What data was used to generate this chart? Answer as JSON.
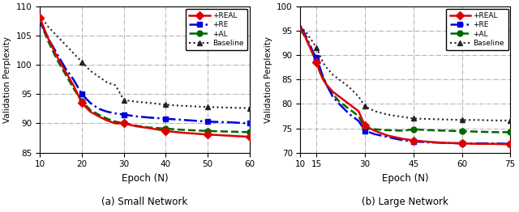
{
  "left_plot": {
    "title": "(a) Small Network",
    "xlabel": "Epoch (N)",
    "ylabel": "Validation Perplexity",
    "xlim": [
      10,
      60
    ],
    "ylim": [
      85,
      110
    ],
    "xticks": [
      10,
      20,
      30,
      40,
      50,
      60
    ],
    "yticks": [
      85,
      90,
      95,
      100,
      105,
      110
    ],
    "series": {
      "REAL": {
        "x": [
          10,
          12,
          14,
          16,
          18,
          20,
          22,
          24,
          26,
          28,
          30,
          33,
          36,
          40,
          44,
          50,
          55,
          60
        ],
        "y": [
          108.0,
          104.5,
          101.5,
          99.0,
          96.5,
          93.5,
          92.0,
          91.2,
          90.5,
          90.0,
          90.0,
          89.5,
          89.2,
          88.7,
          88.4,
          88.1,
          87.9,
          87.7
        ],
        "marker_x": [
          10,
          20,
          30,
          40,
          50,
          60
        ],
        "marker_y": [
          108.0,
          93.5,
          90.0,
          88.7,
          88.1,
          87.7
        ],
        "color": "#dd0000",
        "linestyle": "-",
        "marker": "D",
        "linewidth": 1.8,
        "markersize": 5,
        "label": "+REAL"
      },
      "RE": {
        "x": [
          10,
          12,
          14,
          16,
          18,
          20,
          22,
          24,
          26,
          28,
          30,
          33,
          36,
          40,
          44,
          50,
          55,
          60
        ],
        "y": [
          107.5,
          104.5,
          102.0,
          99.5,
          97.5,
          95.0,
          93.5,
          92.5,
          92.0,
          91.7,
          91.5,
          91.2,
          91.0,
          90.8,
          90.6,
          90.3,
          90.2,
          90.0
        ],
        "marker_x": [
          20,
          30,
          40,
          50,
          60
        ],
        "marker_y": [
          95.0,
          91.5,
          90.8,
          90.3,
          90.0
        ],
        "color": "#0000dd",
        "linestyle": "-.",
        "marker": "s",
        "linewidth": 1.8,
        "markersize": 5,
        "label": "+RE"
      },
      "AL": {
        "x": [
          10,
          12,
          14,
          16,
          18,
          20,
          22,
          24,
          26,
          28,
          30,
          33,
          36,
          40,
          44,
          50,
          55,
          60
        ],
        "y": [
          107.5,
          104.0,
          101.0,
          98.5,
          96.0,
          93.8,
          92.3,
          91.5,
          90.8,
          90.3,
          90.0,
          89.6,
          89.3,
          89.1,
          88.9,
          88.7,
          88.6,
          88.5
        ],
        "marker_x": [
          20,
          30,
          40,
          50,
          60
        ],
        "marker_y": [
          93.8,
          90.0,
          89.1,
          88.7,
          88.5
        ],
        "color": "#006600",
        "linestyle": "--",
        "marker": "o",
        "linewidth": 1.8,
        "markersize": 5,
        "label": "+AL"
      },
      "Baseline": {
        "x": [
          10,
          12,
          14,
          16,
          18,
          20,
          22,
          24,
          26,
          28,
          30,
          33,
          36,
          40,
          44,
          50,
          55,
          60
        ],
        "y": [
          108.5,
          106.5,
          105.0,
          103.5,
          102.0,
          100.5,
          99.0,
          98.0,
          97.0,
          96.5,
          94.0,
          93.7,
          93.5,
          93.2,
          93.0,
          92.8,
          92.7,
          92.6
        ],
        "marker_x": [
          20,
          30,
          40,
          50,
          60
        ],
        "marker_y": [
          100.5,
          94.0,
          93.2,
          92.8,
          92.6
        ],
        "color": "#222222",
        "linestyle": ":",
        "marker": "^",
        "linewidth": 1.5,
        "markersize": 5,
        "label": "Baseline"
      }
    }
  },
  "right_plot": {
    "title": "(b) Large Network",
    "xlabel": "Epoch (N)",
    "ylabel": "Validation Perplexity",
    "xlim": [
      10,
      75
    ],
    "ylim": [
      70,
      100
    ],
    "xticks": [
      10,
      15,
      30,
      45,
      60,
      75
    ],
    "yticks": [
      70,
      75,
      80,
      85,
      90,
      95,
      100
    ],
    "series": {
      "REAL": {
        "x": [
          10,
          11,
          12,
          13,
          14,
          15,
          16,
          17,
          18,
          20,
          22,
          25,
          28,
          30,
          33,
          37,
          42,
          45,
          50,
          55,
          60,
          65,
          70,
          75
        ],
        "y": [
          95.5,
          94.5,
          93.0,
          91.5,
          90.0,
          88.5,
          86.5,
          85.0,
          84.0,
          82.5,
          81.5,
          80.0,
          78.5,
          75.5,
          74.5,
          73.5,
          72.8,
          72.5,
          72.2,
          72.0,
          71.9,
          71.8,
          71.8,
          71.7
        ],
        "marker_x": [
          15,
          30,
          45,
          60,
          75
        ],
        "marker_y": [
          88.5,
          75.5,
          72.5,
          71.9,
          71.7
        ],
        "color": "#dd0000",
        "linestyle": "-",
        "marker": "D",
        "linewidth": 1.8,
        "markersize": 5,
        "label": "+REAL"
      },
      "RE": {
        "x": [
          10,
          11,
          12,
          13,
          14,
          15,
          16,
          17,
          18,
          20,
          22,
          25,
          28,
          30,
          33,
          37,
          42,
          45,
          50,
          55,
          60,
          65,
          70,
          75
        ],
        "y": [
          95.8,
          94.8,
          93.5,
          92.0,
          90.5,
          89.5,
          87.5,
          85.5,
          84.0,
          81.5,
          80.0,
          78.0,
          76.5,
          74.5,
          73.8,
          73.2,
          72.5,
          72.3,
          72.1,
          72.0,
          71.9,
          71.9,
          71.9,
          71.8
        ],
        "marker_x": [
          15,
          30,
          45,
          60,
          75
        ],
        "marker_y": [
          89.5,
          74.5,
          72.3,
          71.9,
          71.8
        ],
        "color": "#0000dd",
        "linestyle": "-.",
        "marker": "s",
        "linewidth": 1.8,
        "markersize": 5,
        "label": "+RE"
      },
      "AL": {
        "x": [
          10,
          11,
          12,
          13,
          14,
          15,
          16,
          17,
          18,
          20,
          22,
          25,
          28,
          30,
          33,
          37,
          42,
          45,
          50,
          55,
          60,
          65,
          70,
          75
        ],
        "y": [
          95.2,
          94.2,
          93.0,
          91.5,
          90.0,
          88.8,
          87.2,
          85.5,
          84.0,
          82.0,
          80.5,
          79.0,
          77.5,
          75.0,
          74.8,
          74.6,
          74.5,
          74.8,
          74.6,
          74.5,
          74.4,
          74.3,
          74.2,
          74.2
        ],
        "marker_x": [
          15,
          30,
          45,
          60,
          75
        ],
        "marker_y": [
          88.8,
          75.0,
          74.8,
          74.4,
          74.2
        ],
        "color": "#006600",
        "linestyle": "--",
        "marker": "o",
        "linewidth": 1.8,
        "markersize": 5,
        "label": "+AL"
      },
      "Baseline": {
        "x": [
          10,
          11,
          12,
          13,
          14,
          15,
          16,
          17,
          18,
          20,
          22,
          25,
          28,
          30,
          33,
          37,
          42,
          45,
          50,
          55,
          60,
          65,
          70,
          75
        ],
        "y": [
          96.0,
          95.2,
          94.5,
          93.5,
          92.5,
          91.5,
          90.0,
          88.5,
          87.5,
          86.0,
          85.0,
          83.5,
          81.5,
          79.5,
          78.5,
          77.8,
          77.3,
          77.0,
          76.9,
          76.8,
          76.7,
          76.7,
          76.6,
          76.6
        ],
        "marker_x": [
          15,
          30,
          45,
          60,
          75
        ],
        "marker_y": [
          91.5,
          79.5,
          77.0,
          76.7,
          76.6
        ],
        "color": "#222222",
        "linestyle": ":",
        "marker": "^",
        "linewidth": 1.5,
        "markersize": 5,
        "label": "Baseline"
      }
    }
  },
  "figure_width": 6.4,
  "figure_height": 2.62,
  "dpi": 100
}
